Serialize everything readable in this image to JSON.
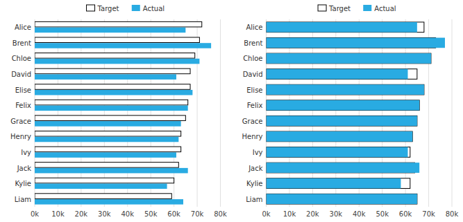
{
  "chart_data": [
    {
      "type": "bar",
      "orientation": "horizontal",
      "grid": true,
      "legend": "top",
      "categories": [
        "Alice",
        "Brent",
        "Chloe",
        "David",
        "Elise",
        "Felix",
        "Grace",
        "Henry",
        "Ivy",
        "Jack",
        "Kylie",
        "Liam"
      ],
      "series": [
        {
          "name": "Target",
          "color": "#000000",
          "values": [
            72000,
            71000,
            69000,
            67000,
            67000,
            66000,
            65000,
            63000,
            63000,
            62000,
            60000,
            59000
          ]
        },
        {
          "name": "Actual",
          "color": "#29ABE2",
          "values": [
            65000,
            76000,
            71000,
            61000,
            68000,
            66000,
            63000,
            62000,
            61000,
            66000,
            57000,
            64000
          ]
        }
      ],
      "xlim": [
        0,
        80000
      ],
      "xticks": [
        {
          "value": 0,
          "label": "0k"
        },
        {
          "value": 10000,
          "label": "10k"
        },
        {
          "value": 20000,
          "label": "20k"
        },
        {
          "value": 30000,
          "label": "30k"
        },
        {
          "value": 40000,
          "label": "40k"
        },
        {
          "value": 50000,
          "label": "50k"
        },
        {
          "value": 60000,
          "label": "60k"
        },
        {
          "value": 70000,
          "label": "70k"
        },
        {
          "value": 80000,
          "label": "80k"
        }
      ]
    },
    {
      "type": "thermometer",
      "orientation": "horizontal",
      "grid": true,
      "legend": "top",
      "categories": [
        "Alice",
        "Brent",
        "Chloe",
        "David",
        "Elise",
        "Felix",
        "Grace",
        "Henry",
        "Ivy",
        "Jack",
        "Kylie",
        "Liam"
      ],
      "series": [
        {
          "name": "Target",
          "color": "#000000",
          "values": [
            68000,
            73000,
            71000,
            65000,
            68000,
            66000,
            65000,
            63000,
            62000,
            64000,
            62000,
            65000
          ]
        },
        {
          "name": "Actual",
          "color": "#29ABE2",
          "values": [
            65000,
            77000,
            71000,
            61000,
            68000,
            66000,
            65000,
            63000,
            61000,
            66000,
            58000,
            65000
          ]
        }
      ],
      "xlim": [
        0,
        80000
      ],
      "xticks": [
        {
          "value": 0,
          "label": "0k"
        },
        {
          "value": 10000,
          "label": "10k"
        },
        {
          "value": 20000,
          "label": "20k"
        },
        {
          "value": 30000,
          "label": "30k"
        },
        {
          "value": 40000,
          "label": "40k"
        },
        {
          "value": 50000,
          "label": "50k"
        },
        {
          "value": 60000,
          "label": "60k"
        },
        {
          "value": 70000,
          "label": "70k"
        },
        {
          "value": 80000,
          "label": "80k"
        }
      ]
    }
  ]
}
